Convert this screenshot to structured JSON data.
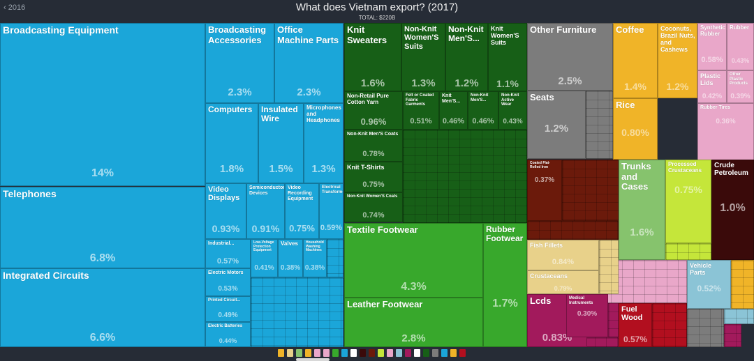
{
  "header": {
    "back_label": "‹ 2016",
    "title": "What does Vietnam export? (2017)",
    "total": "TOTAL: $220B"
  },
  "colors": {
    "background": "#262c36",
    "machinery": "#1ba6d9",
    "textiles": "#175f17",
    "footwear": "#38a82c",
    "furniture": "#7c7c7c",
    "foodstuffs": "#f0b428",
    "plastics": "#e9a7c9",
    "metals": "#6b1a0b",
    "chemicals": "#c5e63a",
    "minerals": "#3a0a0a",
    "animal": "#e8d18a",
    "instruments": "#a21a5c",
    "wood": "#b20f1f",
    "hides": "#86c36d",
    "transport": "#8bc4d6"
  },
  "chart_data": {
    "type": "treemap",
    "title": "What does Vietnam export? (2017)",
    "subtitle": "TOTAL: $220B",
    "cells": [
      {
        "label": "Broadcasting Equipment",
        "share": "14%"
      },
      {
        "label": "Telephones",
        "share": "6.8%"
      },
      {
        "label": "Integrated Circuits",
        "share": "6.6%"
      },
      {
        "label": "Broadcasting Accessories",
        "share": "2.3%"
      },
      {
        "label": "Office Machine Parts",
        "share": "2.3%"
      },
      {
        "label": "Computers",
        "share": "1.8%"
      },
      {
        "label": "Insulated Wire",
        "share": "1.5%"
      },
      {
        "label": "Microphones and Headphones",
        "share": "1.3%"
      },
      {
        "label": "Video Displays",
        "share": "0.93%"
      },
      {
        "label": "Semiconductor Devices",
        "share": "0.91%"
      },
      {
        "label": "Video Recording Equipment",
        "share": "0.75%"
      },
      {
        "label": "Electrical Transformers",
        "share": "0.59%"
      },
      {
        "label": "Industrial...",
        "share": "0.57%"
      },
      {
        "label": "Low-Voltage Protection Equipment",
        "share": "0.41%"
      },
      {
        "label": "Valves",
        "share": "0.38%"
      },
      {
        "label": "Household Washing Machines",
        "share": "0.38%"
      },
      {
        "label": "Electric Motors",
        "share": "0.53%"
      },
      {
        "label": "Printed Circuit...",
        "share": "0.49%"
      },
      {
        "label": "Electric Batteries",
        "share": "0.44%"
      },
      {
        "label": "Knit Sweaters",
        "share": "1.6%"
      },
      {
        "label": "Non-Knit Women'S Suits",
        "share": "1.3%"
      },
      {
        "label": "Non-Knit Men'S...",
        "share": "1.2%"
      },
      {
        "label": "Knit Women'S Suits",
        "share": "1.1%"
      },
      {
        "label": "Non-Retail Pure Cotton Yarn",
        "share": "0.96%"
      },
      {
        "label": "Felt or Coated Fabric Garments",
        "share": "0.51%"
      },
      {
        "label": "Knit Men'S...",
        "share": "0.46%"
      },
      {
        "label": "Non-Knit Men'S...",
        "share": "0.46%"
      },
      {
        "label": "Non-Knit Active Wear",
        "share": "0.43%"
      },
      {
        "label": "Non-Knit Men'S Coats",
        "share": "0.78%"
      },
      {
        "label": "Knit T-Shirts",
        "share": "0.75%"
      },
      {
        "label": "Non-Knit Women'S Coats",
        "share": "0.74%"
      },
      {
        "label": "Textile Footwear",
        "share": "4.3%"
      },
      {
        "label": "Leather Footwear",
        "share": "2.8%"
      },
      {
        "label": "Rubber Footwear",
        "share": "1.7%"
      },
      {
        "label": "Other Furniture",
        "share": "2.5%"
      },
      {
        "label": "Seats",
        "share": "1.2%"
      },
      {
        "label": "Coffee",
        "share": "1.4%"
      },
      {
        "label": "Coconuts, Brazil Nuts, and Cashews",
        "share": "1.2%"
      },
      {
        "label": "Rice",
        "share": "0.80%"
      },
      {
        "label": "Synthetic Rubber",
        "share": "0.58%"
      },
      {
        "label": "Rubber",
        "share": "0.43%"
      },
      {
        "label": "Plastic Lids",
        "share": "0.42%"
      },
      {
        "label": "Other Plastic Products",
        "share": "0.39%"
      },
      {
        "label": "Rubber Tires",
        "share": "0.36%"
      },
      {
        "label": "Coated Flat-Rolled Iron",
        "share": "0.37%"
      },
      {
        "label": "Trunks and Cases",
        "share": "1.6%"
      },
      {
        "label": "Processed Crustaceans",
        "share": "0.75%"
      },
      {
        "label": "Crude Petroleum",
        "share": "1.0%"
      },
      {
        "label": "Fish Fillets",
        "share": "0.84%"
      },
      {
        "label": "Crustaceans",
        "share": "0.79%"
      },
      {
        "label": "Vehicle Parts",
        "share": "0.52%"
      },
      {
        "label": "Lcds",
        "share": "0.83%"
      },
      {
        "label": "Medical Instruments",
        "share": "0.30%"
      },
      {
        "label": "Fuel Wood",
        "share": "0.57%"
      }
    ]
  }
}
